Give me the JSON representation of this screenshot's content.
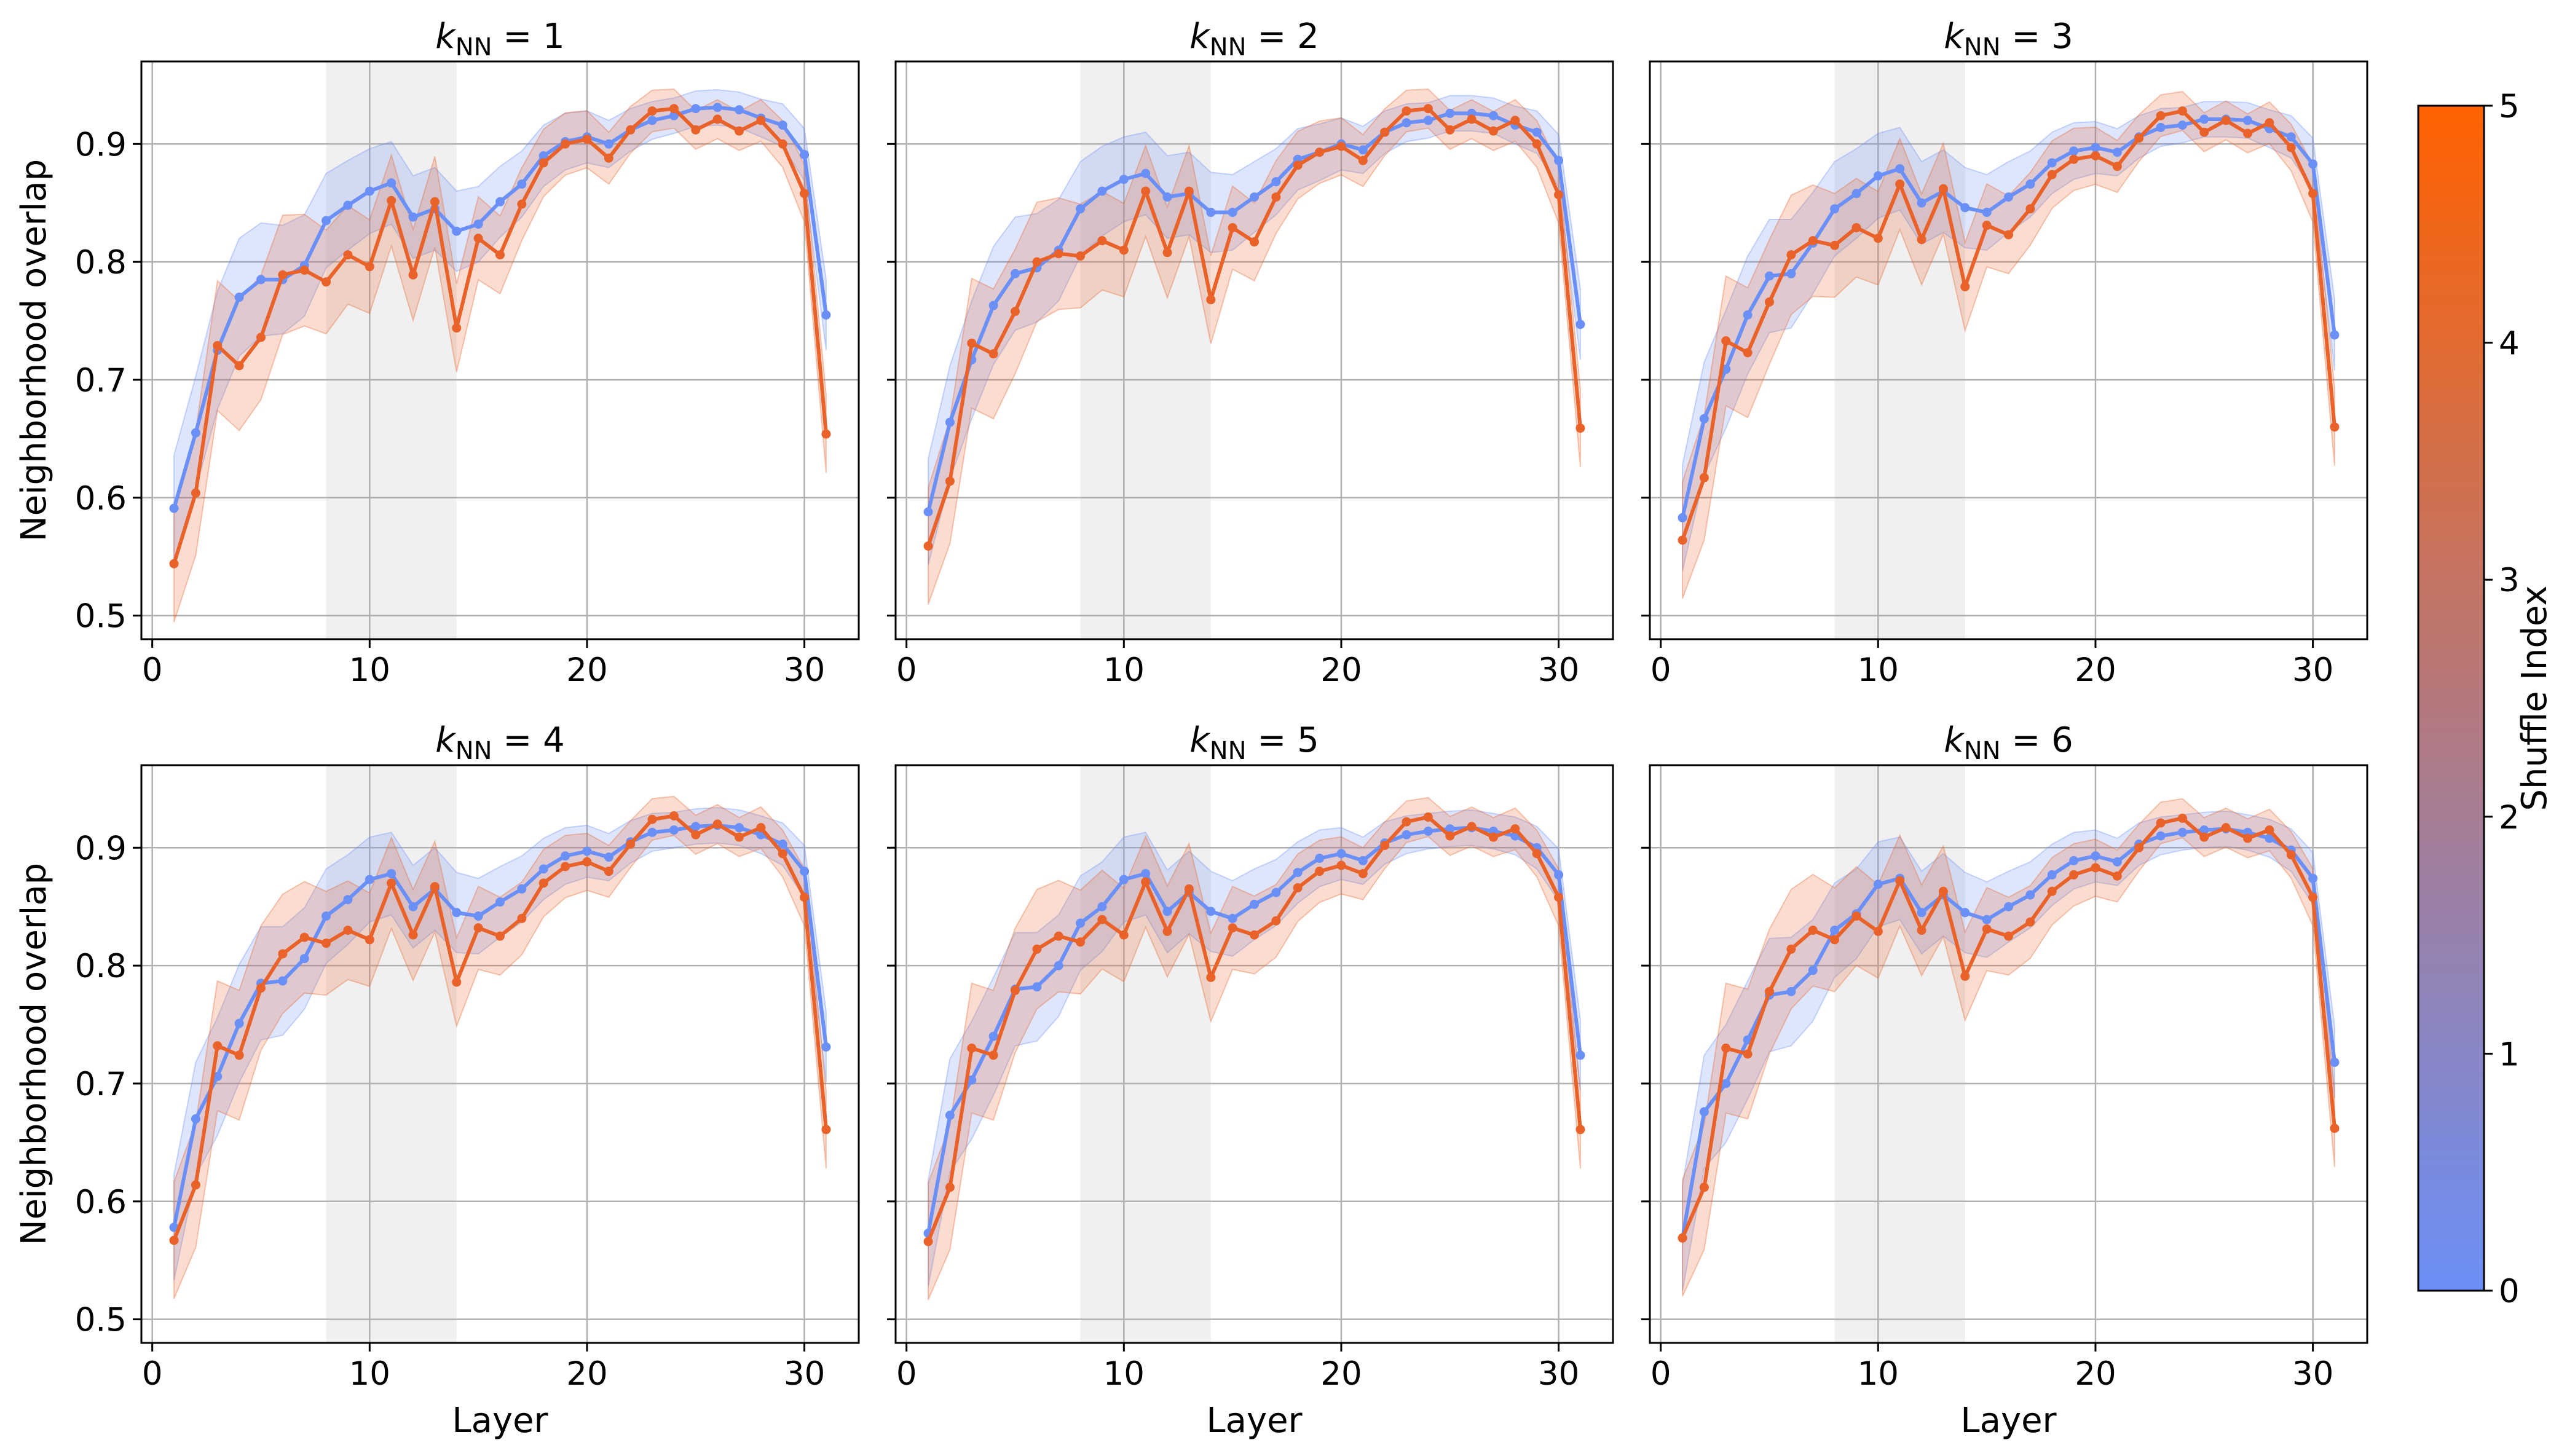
{
  "chart_data": {
    "type": "line",
    "panel_titles": [
      "k_NN = 1",
      "k_NN = 2",
      "k_NN = 3",
      "k_NN = 4",
      "k_NN = 5",
      "k_NN = 6"
    ],
    "title_parts": {
      "k": "k",
      "sub": "NN",
      "eq": " = "
    },
    "panel_k": [
      "1",
      "2",
      "3",
      "4",
      "5",
      "6"
    ],
    "xlabel": "Layer",
    "ylabel": "Neighborhood overlap",
    "xlim": [
      -0.5,
      32.5
    ],
    "ylim": [
      0.48,
      0.97
    ],
    "xticks": [
      0,
      10,
      20,
      30
    ],
    "xtick_labels": [
      "0",
      "10",
      "20",
      "30"
    ],
    "yticks": [
      0.5,
      0.6,
      0.7,
      0.8,
      0.9
    ],
    "ytick_labels": [
      "0.5",
      "0.6",
      "0.7",
      "0.8",
      "0.9"
    ],
    "grid": true,
    "highlight_band": [
      8,
      14
    ],
    "x": [
      1,
      2,
      3,
      4,
      5,
      6,
      7,
      8,
      9,
      10,
      11,
      12,
      13,
      14,
      15,
      16,
      17,
      18,
      19,
      20,
      21,
      22,
      23,
      24,
      25,
      26,
      27,
      28,
      29,
      30,
      31
    ],
    "colorbar": {
      "label": "Shuffle Index",
      "range": [
        0,
        5
      ],
      "ticks": [
        "0",
        "1",
        "2",
        "3",
        "4",
        "5"
      ],
      "color_low": "#6a8ff7",
      "color_high": "#ff6100"
    },
    "series_colors": {
      "shuffle_0": "#6a8ff7",
      "shuffle_5": "#e8622a"
    },
    "panels": [
      {
        "shuffle_0": [
          0.591,
          0.655,
          0.725,
          0.77,
          0.785,
          0.785,
          0.797,
          0.835,
          0.848,
          0.86,
          0.867,
          0.838,
          0.845,
          0.826,
          0.832,
          0.851,
          0.866,
          0.89,
          0.902,
          0.906,
          0.9,
          0.912,
          0.92,
          0.924,
          0.93,
          0.931,
          0.929,
          0.922,
          0.916,
          0.891,
          0.755
        ],
        "shuffle_5": [
          0.544,
          0.604,
          0.729,
          0.712,
          0.736,
          0.789,
          0.793,
          0.783,
          0.806,
          0.796,
          0.852,
          0.789,
          0.851,
          0.744,
          0.82,
          0.806,
          0.849,
          0.884,
          0.9,
          0.904,
          0.888,
          0.912,
          0.928,
          0.93,
          0.912,
          0.921,
          0.911,
          0.92,
          0.9,
          0.858,
          0.654
        ]
      },
      {
        "shuffle_0": [
          0.588,
          0.664,
          0.717,
          0.763,
          0.79,
          0.795,
          0.81,
          0.845,
          0.86,
          0.87,
          0.875,
          0.855,
          0.858,
          0.842,
          0.842,
          0.855,
          0.868,
          0.887,
          0.893,
          0.9,
          0.895,
          0.91,
          0.918,
          0.92,
          0.926,
          0.926,
          0.924,
          0.916,
          0.91,
          0.886,
          0.747
        ],
        "shuffle_5": [
          0.559,
          0.614,
          0.731,
          0.722,
          0.758,
          0.8,
          0.807,
          0.805,
          0.818,
          0.81,
          0.86,
          0.808,
          0.86,
          0.768,
          0.829,
          0.817,
          0.855,
          0.882,
          0.893,
          0.898,
          0.886,
          0.91,
          0.928,
          0.93,
          0.912,
          0.921,
          0.911,
          0.92,
          0.9,
          0.857,
          0.659
        ]
      },
      {
        "shuffle_0": [
          0.583,
          0.667,
          0.709,
          0.755,
          0.788,
          0.79,
          0.816,
          0.845,
          0.858,
          0.873,
          0.879,
          0.85,
          0.86,
          0.846,
          0.842,
          0.855,
          0.866,
          0.884,
          0.894,
          0.897,
          0.893,
          0.906,
          0.914,
          0.916,
          0.921,
          0.921,
          0.92,
          0.913,
          0.906,
          0.883,
          0.738
        ],
        "shuffle_5": [
          0.564,
          0.617,
          0.733,
          0.723,
          0.766,
          0.806,
          0.818,
          0.814,
          0.829,
          0.82,
          0.866,
          0.819,
          0.862,
          0.779,
          0.831,
          0.823,
          0.845,
          0.874,
          0.887,
          0.89,
          0.881,
          0.905,
          0.924,
          0.928,
          0.91,
          0.92,
          0.909,
          0.918,
          0.897,
          0.858,
          0.66
        ]
      },
      {
        "shuffle_0": [
          0.578,
          0.67,
          0.706,
          0.751,
          0.785,
          0.787,
          0.806,
          0.842,
          0.856,
          0.873,
          0.878,
          0.85,
          0.865,
          0.845,
          0.842,
          0.854,
          0.865,
          0.882,
          0.893,
          0.897,
          0.892,
          0.905,
          0.913,
          0.915,
          0.918,
          0.919,
          0.917,
          0.911,
          0.903,
          0.88,
          0.731
        ],
        "shuffle_5": [
          0.567,
          0.614,
          0.732,
          0.724,
          0.781,
          0.81,
          0.824,
          0.819,
          0.83,
          0.822,
          0.87,
          0.826,
          0.867,
          0.786,
          0.832,
          0.825,
          0.84,
          0.87,
          0.884,
          0.888,
          0.88,
          0.903,
          0.924,
          0.927,
          0.911,
          0.92,
          0.909,
          0.917,
          0.895,
          0.858,
          0.661
        ]
      },
      {
        "shuffle_0": [
          0.573,
          0.673,
          0.703,
          0.74,
          0.78,
          0.782,
          0.8,
          0.836,
          0.85,
          0.873,
          0.878,
          0.846,
          0.862,
          0.846,
          0.84,
          0.852,
          0.862,
          0.879,
          0.891,
          0.895,
          0.889,
          0.904,
          0.911,
          0.914,
          0.916,
          0.917,
          0.914,
          0.91,
          0.9,
          0.877,
          0.724
        ],
        "shuffle_5": [
          0.566,
          0.612,
          0.73,
          0.724,
          0.779,
          0.814,
          0.825,
          0.82,
          0.839,
          0.826,
          0.871,
          0.829,
          0.865,
          0.79,
          0.832,
          0.826,
          0.838,
          0.866,
          0.88,
          0.885,
          0.878,
          0.902,
          0.922,
          0.926,
          0.91,
          0.918,
          0.909,
          0.916,
          0.895,
          0.858,
          0.661
        ]
      },
      {
        "shuffle_0": [
          0.569,
          0.676,
          0.7,
          0.737,
          0.775,
          0.778,
          0.796,
          0.83,
          0.844,
          0.869,
          0.874,
          0.845,
          0.86,
          0.845,
          0.839,
          0.85,
          0.86,
          0.877,
          0.889,
          0.893,
          0.888,
          0.903,
          0.91,
          0.913,
          0.915,
          0.916,
          0.913,
          0.908,
          0.898,
          0.874,
          0.718
        ],
        "shuffle_5": [
          0.569,
          0.612,
          0.73,
          0.725,
          0.778,
          0.814,
          0.83,
          0.822,
          0.842,
          0.829,
          0.872,
          0.83,
          0.863,
          0.791,
          0.831,
          0.825,
          0.837,
          0.863,
          0.877,
          0.883,
          0.876,
          0.9,
          0.921,
          0.925,
          0.909,
          0.917,
          0.908,
          0.915,
          0.894,
          0.858,
          0.662
        ]
      }
    ]
  }
}
